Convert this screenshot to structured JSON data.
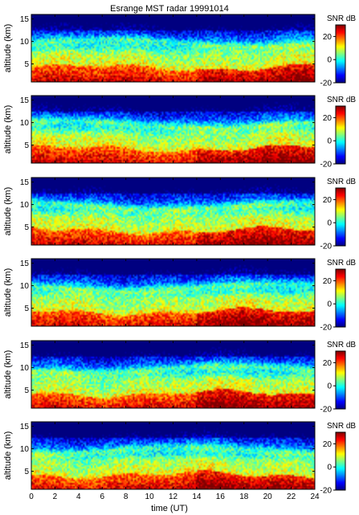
{
  "figure": {
    "title": "Esrange MST radar 19991014",
    "xlabel": "time (UT)"
  },
  "chart_data": [
    {
      "type": "heatmap",
      "panel": 1,
      "title": "Esrange MST radar 19991014",
      "xlabel": "",
      "ylabel": "altitude (km)",
      "xlim": [
        0,
        24
      ],
      "ylim": [
        1,
        16
      ],
      "xticks": [
        0,
        2,
        4,
        6,
        8,
        10,
        12,
        14,
        16,
        18,
        20,
        22,
        24
      ],
      "yticks": [
        5,
        10,
        15
      ],
      "colorbar": {
        "label": "SNR dB",
        "min": -20,
        "max": 30,
        "ticks": [
          -20,
          0,
          20
        ],
        "colormap": "jet"
      }
    },
    {
      "type": "heatmap",
      "panel": 2,
      "xlabel": "",
      "ylabel": "altitude (km)",
      "xlim": [
        0,
        24
      ],
      "ylim": [
        1,
        16
      ],
      "xticks": [
        0,
        2,
        4,
        6,
        8,
        10,
        12,
        14,
        16,
        18,
        20,
        22,
        24
      ],
      "yticks": [
        5,
        10,
        15
      ],
      "colorbar": {
        "label": "SNR dB",
        "min": -20,
        "max": 30,
        "ticks": [
          -20,
          0,
          20
        ],
        "colormap": "jet"
      }
    },
    {
      "type": "heatmap",
      "panel": 3,
      "xlabel": "",
      "ylabel": "altitude (km)",
      "xlim": [
        0,
        24
      ],
      "ylim": [
        1,
        16
      ],
      "xticks": [
        0,
        2,
        4,
        6,
        8,
        10,
        12,
        14,
        16,
        18,
        20,
        22,
        24
      ],
      "yticks": [
        5,
        10,
        15
      ],
      "colorbar": {
        "label": "SNR dB",
        "min": -20,
        "max": 30,
        "ticks": [
          -20,
          0,
          20
        ],
        "colormap": "jet"
      }
    },
    {
      "type": "heatmap",
      "panel": 4,
      "xlabel": "",
      "ylabel": "altitude (km)",
      "xlim": [
        0,
        24
      ],
      "ylim": [
        1,
        16
      ],
      "xticks": [
        0,
        2,
        4,
        6,
        8,
        10,
        12,
        14,
        16,
        18,
        20,
        22,
        24
      ],
      "yticks": [
        5,
        10,
        15
      ],
      "colorbar": {
        "label": "SNR dB",
        "min": -20,
        "max": 30,
        "ticks": [
          -20,
          0,
          20
        ],
        "colormap": "jet"
      }
    },
    {
      "type": "heatmap",
      "panel": 5,
      "xlabel": "",
      "ylabel": "altitude (km)",
      "xlim": [
        0,
        24
      ],
      "ylim": [
        1,
        16
      ],
      "xticks": [
        0,
        2,
        4,
        6,
        8,
        10,
        12,
        14,
        16,
        18,
        20,
        22,
        24
      ],
      "yticks": [
        5,
        10,
        15
      ],
      "colorbar": {
        "label": "SNR dB",
        "min": -20,
        "max": 30,
        "ticks": [
          -20,
          0,
          20
        ],
        "colormap": "jet"
      }
    },
    {
      "type": "heatmap",
      "panel": 6,
      "xlabel": "time (UT)",
      "ylabel": "altitude (km)",
      "xlim": [
        0,
        24
      ],
      "ylim": [
        1,
        16
      ],
      "xticks": [
        0,
        2,
        4,
        6,
        8,
        10,
        12,
        14,
        16,
        18,
        20,
        22,
        24
      ],
      "xticklabels": [
        "0",
        "2",
        "4",
        "6",
        "8",
        "10",
        "12",
        "14",
        "16",
        "18",
        "20",
        "22",
        "24"
      ],
      "yticks": [
        5,
        10,
        15
      ],
      "colorbar": {
        "label": "SNR dB",
        "min": -20,
        "max": 30,
        "ticks": [
          -20,
          0,
          20
        ],
        "colormap": "jet"
      }
    }
  ]
}
